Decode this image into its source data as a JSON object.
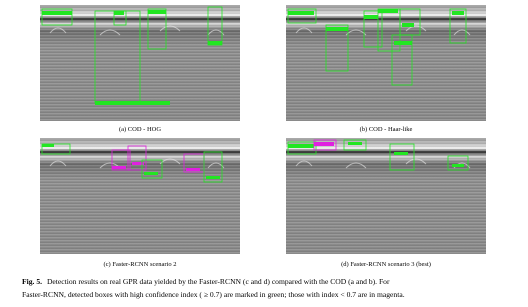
{
  "panels": [
    {
      "caption": "(a) COD - HOG"
    },
    {
      "caption": "(b) COD - Haar-like"
    },
    {
      "caption": "(c) Faster-RCNN scenario 2"
    },
    {
      "caption": "(d) Faster-RCNN scenario 3 (best)"
    }
  ],
  "caption": {
    "label": "Fig. 5.",
    "lines": [
      "Detection results on real GPR data yielded by the Faster-RCNN (c and d) compared with the COD (a and b). For",
      "Faster-RCNN, detected boxes with high confidence index ( ≥ 0.7) are marked in green; those with index < 0.7 are in magenta."
    ]
  }
}
